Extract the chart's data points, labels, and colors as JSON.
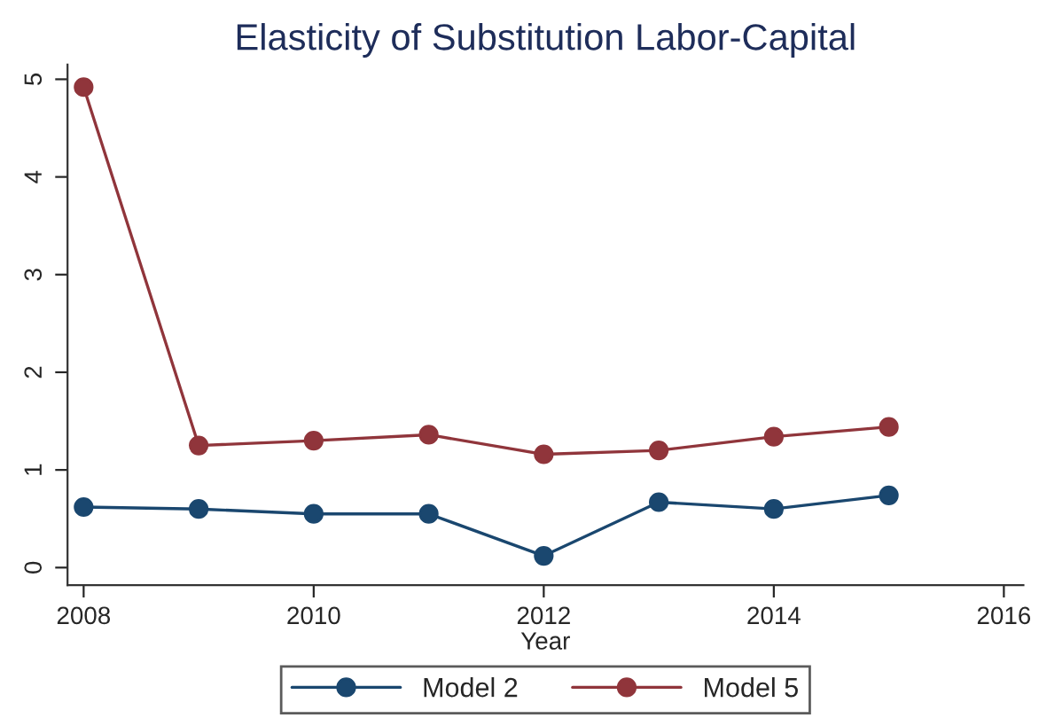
{
  "chart_data": {
    "type": "line",
    "title": "Elasticity of Substitution Labor-Capital",
    "xlabel": "Year",
    "x": [
      2008,
      2009,
      2010,
      2011,
      2012,
      2013,
      2014,
      2015
    ],
    "series": [
      {
        "name": "Model 2",
        "color": "#1a476f",
        "values": [
          0.62,
          0.6,
          0.55,
          0.55,
          0.12,
          0.67,
          0.6,
          0.74
        ]
      },
      {
        "name": "Model 5",
        "color": "#90353b",
        "values": [
          4.92,
          1.25,
          1.3,
          1.36,
          1.16,
          1.2,
          1.34,
          1.44
        ]
      }
    ],
    "xlim": [
      2007.86,
      2016.17
    ],
    "xticks": [
      2008,
      2010,
      2012,
      2014,
      2016
    ],
    "ylim": [
      -0.18,
      5.15
    ],
    "yticks": [
      0,
      1,
      2,
      3,
      4,
      5
    ],
    "grid": false,
    "legend": "bottom",
    "marker": "circle",
    "line_style": "solid"
  }
}
